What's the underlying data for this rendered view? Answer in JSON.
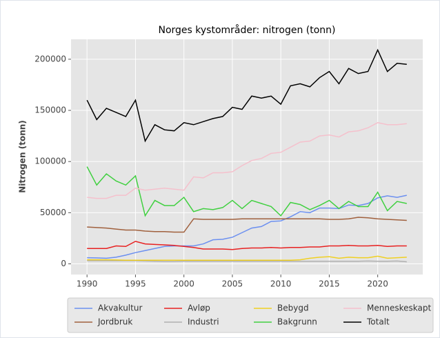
{
  "chart_data": {
    "type": "line",
    "title": "Norges kystområder: nitrogen (tonn)",
    "ylabel": "Nitrogen (tonn)",
    "x": [
      1990,
      1991,
      1992,
      1993,
      1994,
      1995,
      1996,
      1997,
      1998,
      1999,
      2000,
      2001,
      2002,
      2003,
      2004,
      2005,
      2006,
      2007,
      2008,
      2009,
      2010,
      2011,
      2012,
      2013,
      2014,
      2015,
      2016,
      2017,
      2018,
      2019,
      2020,
      2021,
      2022,
      2023
    ],
    "xlim": [
      1988.35,
      2024.65
    ],
    "xticks": [
      1990,
      1995,
      2000,
      2005,
      2010,
      2015,
      2020
    ],
    "ylim": [
      -10450,
      219450
    ],
    "yticks": [
      0,
      50000,
      100000,
      150000,
      200000
    ],
    "grid": true,
    "legend": "lower center",
    "series": [
      {
        "name": "Akvakultur",
        "color": "#6b8ff0",
        "values": [
          6000,
          5800,
          5500,
          6500,
          8500,
          11000,
          13000,
          15000,
          17000,
          17500,
          17500,
          17500,
          19500,
          23500,
          24000,
          26000,
          30500,
          35000,
          36500,
          41500,
          42000,
          46000,
          51000,
          50000,
          54500,
          54500,
          54000,
          57500,
          57000,
          59000,
          64500,
          66500,
          65000,
          67000
        ]
      },
      {
        "name": "Jordbruk",
        "color": "#a0603d",
        "values": [
          36000,
          35500,
          35000,
          34000,
          33000,
          33000,
          32000,
          31500,
          31500,
          31000,
          31000,
          44000,
          43500,
          43500,
          43500,
          43500,
          44000,
          44000,
          44000,
          44000,
          44000,
          44000,
          44000,
          44000,
          44000,
          43500,
          43500,
          44000,
          45500,
          45000,
          44000,
          43500,
          43000,
          42500
        ]
      },
      {
        "name": "Avløp",
        "color": "#e82020",
        "values": [
          15000,
          15000,
          15000,
          17500,
          17000,
          22000,
          19500,
          19000,
          18500,
          18000,
          17000,
          16000,
          14500,
          14500,
          14500,
          14000,
          15000,
          15500,
          15500,
          16000,
          15500,
          16000,
          16000,
          16500,
          16500,
          17500,
          17500,
          18000,
          17500,
          17500,
          18000,
          17000,
          17500,
          17500
        ]
      },
      {
        "name": "Industri",
        "color": "#b0b0b0",
        "values": [
          3000,
          3000,
          3000,
          3000,
          3000,
          3000,
          2800,
          2500,
          2300,
          2300,
          2500,
          2500,
          2500,
          2500,
          2500,
          2500,
          2500,
          2500,
          2500,
          2500,
          2500,
          2500,
          2500,
          2500,
          2500,
          2500,
          2500,
          2500,
          2500,
          2800,
          2500,
          2500,
          2800,
          2000
        ]
      },
      {
        "name": "Bebygd",
        "color": "#f0d020",
        "values": [
          4000,
          4000,
          4000,
          3800,
          3500,
          3500,
          3500,
          3500,
          3500,
          3500,
          3500,
          3500,
          3500,
          3500,
          3500,
          3500,
          3500,
          3500,
          3500,
          3500,
          3500,
          3500,
          4000,
          5500,
          6500,
          7000,
          5500,
          6500,
          6000,
          6000,
          7500,
          5500,
          6000,
          6500
        ]
      },
      {
        "name": "Bakgrunn",
        "color": "#40d040",
        "values": [
          95000,
          77000,
          88000,
          81000,
          77000,
          86000,
          47000,
          62000,
          57000,
          57000,
          65000,
          51000,
          54000,
          53000,
          55000,
          62000,
          54000,
          62000,
          59000,
          56000,
          47000,
          60000,
          58000,
          53000,
          57000,
          62000,
          54000,
          61000,
          56000,
          56000,
          70000,
          52000,
          61000,
          59000
        ]
      },
      {
        "name": "Menneskeskapt",
        "color": "#f5c0cc",
        "values": [
          65000,
          64000,
          64000,
          67000,
          67000,
          74000,
          72000,
          73000,
          74000,
          73000,
          72000,
          85000,
          84000,
          89000,
          89000,
          90000,
          96000,
          101000,
          103000,
          108000,
          109000,
          114000,
          119000,
          120000,
          125000,
          126000,
          124000,
          129000,
          130000,
          133000,
          138000,
          136000,
          136000,
          137000
        ]
      },
      {
        "name": "Totalt",
        "color": "#000000",
        "values": [
          160000,
          141000,
          152000,
          148000,
          144000,
          160000,
          120000,
          136000,
          131000,
          130000,
          138000,
          136000,
          139000,
          142000,
          144000,
          153000,
          151000,
          164000,
          162000,
          164000,
          156000,
          174000,
          176000,
          173000,
          182000,
          188000,
          176000,
          191000,
          186000,
          188000,
          209000,
          188000,
          196000,
          195000
        ]
      }
    ]
  }
}
